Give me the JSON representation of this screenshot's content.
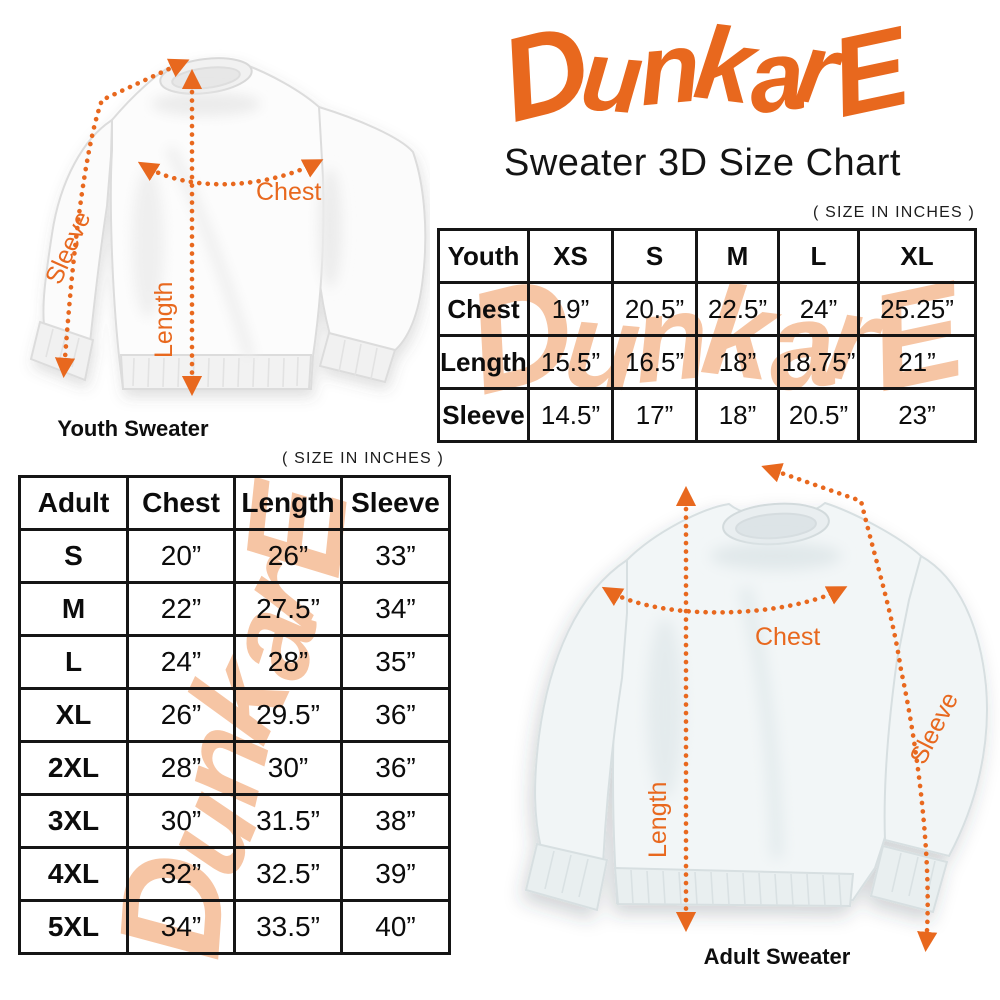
{
  "brand": {
    "logo_text": "DunkarE",
    "accent_color": "#E8681E",
    "watermark_color": "#F6C5A4"
  },
  "header": {
    "title": "Sweater 3D Size Chart"
  },
  "notes": {
    "youth_size_note": "( SIZE IN INCHES )",
    "adult_size_note": "( SIZE IN INCHES )"
  },
  "youth_diagram": {
    "caption": "Youth Sweater",
    "sleeve_label": "Sleeve",
    "length_label": "Length",
    "chest_label": "Chest"
  },
  "adult_diagram": {
    "caption": "Adult Sweater",
    "sleeve_label": "Sleeve",
    "length_label": "Length",
    "chest_label": "Chest"
  },
  "chart_data": [
    {
      "type": "table",
      "name": "youth_sizes",
      "columns": [
        "Youth",
        "XS",
        "S",
        "M",
        "L",
        "XL"
      ],
      "rows": [
        [
          "Chest",
          "19”",
          "20.5”",
          "22.5”",
          "24”",
          "25.25”"
        ],
        [
          "Length",
          "15.5”",
          "16.5”",
          "18”",
          "18.75”",
          "21”"
        ],
        [
          "Sleeve",
          "14.5”",
          "17”",
          "18”",
          "20.5”",
          "23”"
        ]
      ]
    },
    {
      "type": "table",
      "name": "adult_sizes",
      "columns": [
        "Adult",
        "Chest",
        "Length",
        "Sleeve"
      ],
      "rows": [
        [
          "S",
          "20”",
          "26”",
          "33”"
        ],
        [
          "M",
          "22”",
          "27.5”",
          "34”"
        ],
        [
          "L",
          "24”",
          "28”",
          "35”"
        ],
        [
          "XL",
          "26”",
          "29.5”",
          "36”"
        ],
        [
          "2XL",
          "28”",
          "30”",
          "36”"
        ],
        [
          "3XL",
          "30”",
          "31.5”",
          "38”"
        ],
        [
          "4XL",
          "32”",
          "32.5”",
          "39”"
        ],
        [
          "5XL",
          "34”",
          "33.5”",
          "40”"
        ]
      ]
    }
  ]
}
